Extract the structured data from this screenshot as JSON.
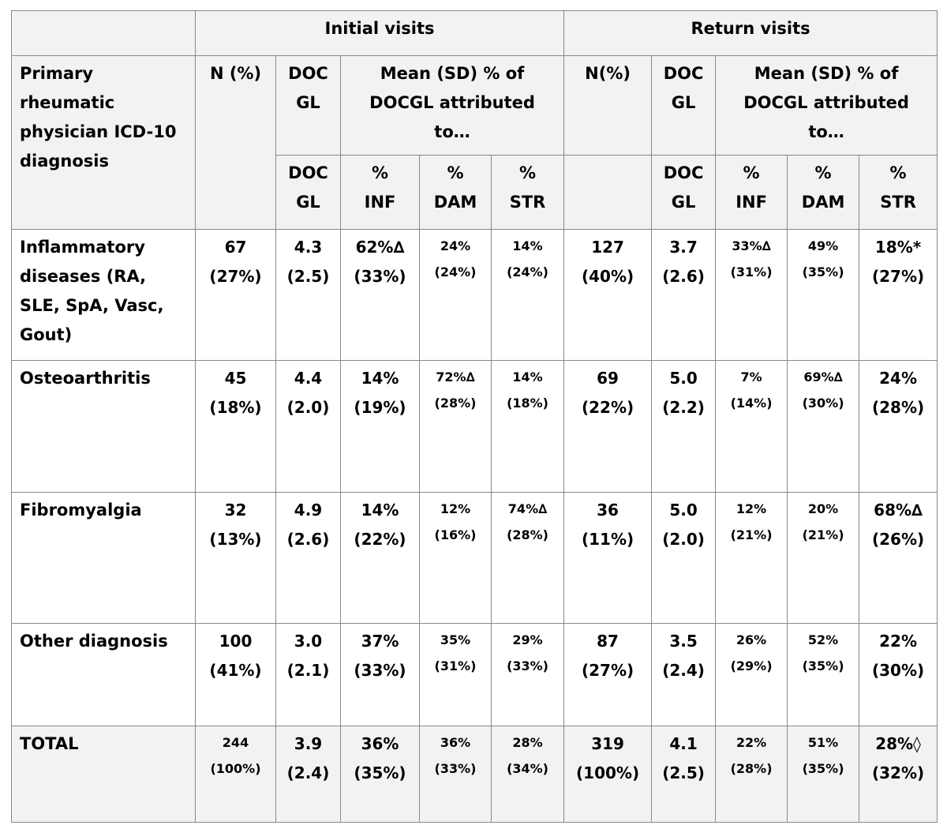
{
  "header": {
    "group_initial": "Initial visits",
    "group_return": "Return visits",
    "diag_label": [
      "Primary",
      "rheumatic",
      "physician ICD-10",
      "diagnosis"
    ],
    "n_pct": "N (%)",
    "n_pct_return": "N(%)",
    "docgl": [
      "DOC",
      "GL"
    ],
    "mean_sd": [
      "Mean (SD) % of",
      "DOCGL attributed",
      "to…"
    ],
    "sub_docgl": [
      "DOC",
      "GL"
    ],
    "sub_inf": [
      "%",
      "INF"
    ],
    "sub_dam": [
      "%",
      "DAM"
    ],
    "sub_str": [
      "%",
      "STR"
    ]
  },
  "rows": [
    {
      "diagnosis": [
        "Inflammatory",
        "diseases (RA,",
        "SLE, SpA, Vasc,",
        "Gout)"
      ],
      "init_n": [
        "67",
        "(27%)"
      ],
      "init_docgl": [
        "4.3",
        "(2.5)"
      ],
      "init_inf": [
        "62%∆",
        "(33%)"
      ],
      "init_dam": [
        "24%",
        "(24%)"
      ],
      "init_str": [
        "14%",
        "(24%)"
      ],
      "ret_n": [
        "127",
        "(40%)"
      ],
      "ret_docgl": [
        "3.7",
        "(2.6)"
      ],
      "ret_inf": [
        "33%∆",
        "(31%)"
      ],
      "ret_dam": [
        "49%",
        "(35%)"
      ],
      "ret_str": [
        "18%*",
        "(27%)"
      ]
    },
    {
      "diagnosis": [
        "Osteoarthritis"
      ],
      "init_n": [
        "45",
        "(18%)"
      ],
      "init_docgl": [
        "4.4",
        "(2.0)"
      ],
      "init_inf": [
        "14%",
        "(19%)"
      ],
      "init_dam": [
        "72%∆",
        "(28%)"
      ],
      "init_str": [
        "14%",
        "(18%)"
      ],
      "ret_n": [
        "69",
        "(22%)"
      ],
      "ret_docgl": [
        "5.0",
        "(2.2)"
      ],
      "ret_inf": [
        "7%",
        "(14%)"
      ],
      "ret_dam": [
        "69%∆",
        "(30%)"
      ],
      "ret_str": [
        "24%",
        "(28%)"
      ]
    },
    {
      "diagnosis": [
        "Fibromyalgia"
      ],
      "init_n": [
        "32",
        "(13%)"
      ],
      "init_docgl": [
        "4.9",
        "(2.6)"
      ],
      "init_inf": [
        "14%",
        "(22%)"
      ],
      "init_dam": [
        "12%",
        "(16%)"
      ],
      "init_str": [
        "74%∆",
        "(28%)"
      ],
      "ret_n": [
        "36",
        "(11%)"
      ],
      "ret_docgl": [
        "5.0",
        "(2.0)"
      ],
      "ret_inf": [
        "12%",
        "(21%)"
      ],
      "ret_dam": [
        "20%",
        "(21%)"
      ],
      "ret_str": [
        "68%∆",
        "(26%)"
      ]
    },
    {
      "diagnosis": [
        "Other diagnosis"
      ],
      "init_n": [
        "100",
        "(41%)"
      ],
      "init_docgl": [
        "3.0",
        "(2.1)"
      ],
      "init_inf": [
        "37%",
        "(33%)"
      ],
      "init_dam": [
        "35%",
        "(31%)"
      ],
      "init_str": [
        "29%",
        "(33%)"
      ],
      "ret_n": [
        "87",
        "(27%)"
      ],
      "ret_docgl": [
        "3.5",
        "(2.4)"
      ],
      "ret_inf": [
        "26%",
        "(29%)"
      ],
      "ret_dam": [
        "52%",
        "(35%)"
      ],
      "ret_str": [
        "22%",
        "(30%)"
      ]
    },
    {
      "diagnosis": [
        "TOTAL"
      ],
      "init_n": [
        "244",
        "(100%)"
      ],
      "init_docgl": [
        "3.9",
        "(2.4)"
      ],
      "init_inf": [
        "36%",
        "(35%)"
      ],
      "init_dam": [
        "36%",
        "(33%)"
      ],
      "init_str": [
        "28%",
        "(34%)"
      ],
      "ret_n": [
        "319",
        "(100%)"
      ],
      "ret_docgl": [
        "4.1",
        "(2.5)"
      ],
      "ret_inf": [
        "22%",
        "(28%)"
      ],
      "ret_dam": [
        "51%",
        "(35%)"
      ],
      "ret_str": [
        "28%◊",
        "(32%)"
      ]
    }
  ]
}
